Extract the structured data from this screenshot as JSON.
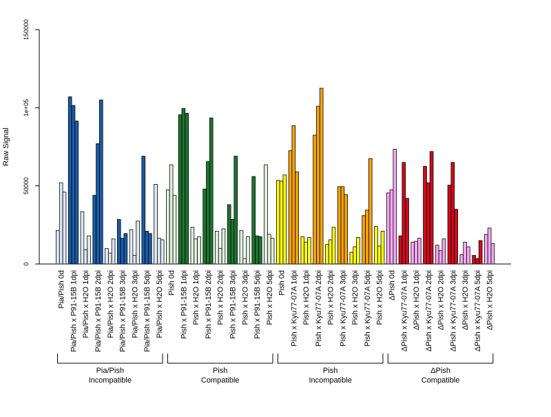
{
  "colors": {
    "group_colors": [
      {
        "light": "#dde8f5",
        "dark": "#1b5ca6"
      },
      {
        "light": "#e0f1dd",
        "dark": "#1e7430"
      },
      {
        "light": "#fbfb1a",
        "dark": "#f5a30c"
      },
      {
        "light": "#f5a8f0",
        "dark": "#cf0c1e"
      }
    ],
    "axis": "#000000",
    "bar_stroke": "#000000"
  },
  "chart_data": {
    "type": "bar",
    "ylabel": "Raw Signal",
    "xlabel": "",
    "ylim": [
      0,
      150000
    ],
    "yticks": [
      {
        "value": 0,
        "label": "0"
      },
      {
        "value": 50000,
        "label": "50000"
      },
      {
        "value": 100000,
        "label": "1e+05"
      },
      {
        "value": 150000,
        "label": "150000"
      }
    ],
    "grid": false,
    "replicates_per_condition": 3,
    "conditions": [
      {
        "label": "Pia/Pish 0d",
        "shade": "light",
        "values": [
          21500,
          52000,
          46000
        ]
      },
      {
        "label": "Pia/Pish x P91-15B 1dpi",
        "shade": "dark",
        "values": [
          107000,
          101500,
          91500
        ]
      },
      {
        "label": "Pia/Pish x H2O 1dpi",
        "shade": "light",
        "values": [
          33500,
          9000,
          18000
        ]
      },
      {
        "label": "Pia/Pish x P91-15B 2dpi",
        "shade": "dark",
        "values": [
          44000,
          77000,
          105000
        ]
      },
      {
        "label": "Pia/Pish x H2O 2dpi",
        "shade": "light",
        "values": [
          10000,
          7000,
          16000
        ]
      },
      {
        "label": "Pia/Pish x P91-15B 3dpi",
        "shade": "dark",
        "values": [
          28500,
          16500,
          19500
        ]
      },
      {
        "label": "Pia/Pish x H2O 3dpi",
        "shade": "light",
        "values": [
          22000,
          5500,
          27500
        ]
      },
      {
        "label": "Pia/Pish x P91-15B 5dpi",
        "shade": "dark",
        "values": [
          69000,
          21000,
          19500
        ]
      },
      {
        "label": "Pia/Pish x H2O 5dpi",
        "shade": "light",
        "values": [
          51000,
          16500,
          15500
        ]
      },
      {
        "label": "Pish 0d",
        "shade": "light",
        "values": [
          47500,
          63500,
          44000
        ]
      },
      {
        "label": "Pish x P91-15B 1dpi",
        "shade": "dark",
        "values": [
          95500,
          99500,
          96500
        ]
      },
      {
        "label": "Pish x H2O 1dpi",
        "shade": "light",
        "values": [
          23500,
          16000,
          17500
        ]
      },
      {
        "label": "Pish x P91-15B 2dpi",
        "shade": "dark",
        "values": [
          48000,
          65500,
          93500
        ]
      },
      {
        "label": "Pish x H2O 2dpi",
        "shade": "light",
        "values": [
          21000,
          10000,
          22500
        ]
      },
      {
        "label": "Pish x P91-15B 3dpi",
        "shade": "dark",
        "values": [
          38000,
          28500,
          69000
        ]
      },
      {
        "label": "Pish x H2O 3dpi",
        "shade": "light",
        "values": [
          21500,
          3500,
          17500
        ]
      },
      {
        "label": "Pish x P91-15B 5dpi",
        "shade": "dark",
        "values": [
          56000,
          18000,
          17500
        ]
      },
      {
        "label": "Pish x H2O 5dpi",
        "shade": "light",
        "values": [
          63500,
          19000,
          16500
        ]
      },
      {
        "label": "Pish 0d",
        "shade": "light",
        "values": [
          53500,
          53000,
          57000
        ]
      },
      {
        "label": "Pish x Kyu77-07A 1dpi",
        "shade": "dark",
        "values": [
          72500,
          88500,
          59000
        ]
      },
      {
        "label": "Pish x H2O 1dpi",
        "shade": "light",
        "values": [
          17500,
          14000,
          17000
        ]
      },
      {
        "label": "Pish x Kyu77-07A 2dpi",
        "shade": "dark",
        "values": [
          82500,
          101000,
          112500
        ]
      },
      {
        "label": "Pish x H2O 2dpi",
        "shade": "light",
        "values": [
          12500,
          15500,
          23500
        ]
      },
      {
        "label": "Pish x Kyu77-07A 3dpi",
        "shade": "dark",
        "values": [
          49500,
          49500,
          44500
        ]
      },
      {
        "label": "Pish x H2O 3dpi",
        "shade": "light",
        "values": [
          7500,
          11000,
          17000
        ]
      },
      {
        "label": "Pish x Kyu77-07A 5dpi",
        "shade": "dark",
        "values": [
          31000,
          34500,
          67500
        ]
      },
      {
        "label": "Pish x H2O 5dpi",
        "shade": "light",
        "values": [
          24000,
          11500,
          21000
        ]
      },
      {
        "label": "ΔPish 0d",
        "shade": "light",
        "values": [
          45500,
          47500,
          73500
        ]
      },
      {
        "label": "ΔPish x Kyu77-07A 1dpi",
        "shade": "dark",
        "values": [
          18000,
          65000,
          42000
        ]
      },
      {
        "label": "ΔPish x H2O 1dpi",
        "shade": "light",
        "values": [
          14000,
          14500,
          16500
        ]
      },
      {
        "label": "ΔPish x Kyu77-07A 2dpi",
        "shade": "dark",
        "values": [
          62500,
          52000,
          72000
        ]
      },
      {
        "label": "ΔPish x H2O 2dpi",
        "shade": "light",
        "values": [
          12000,
          8500,
          16000
        ]
      },
      {
        "label": "ΔPish x Kyu77-07A 3dpi",
        "shade": "dark",
        "values": [
          50500,
          65000,
          35000
        ]
      },
      {
        "label": "ΔPish x H2O 3dpi",
        "shade": "light",
        "values": [
          6000,
          14000,
          11000
        ]
      },
      {
        "label": "ΔPish x Kyu77-07A 5dpi",
        "shade": "dark",
        "values": [
          5500,
          3500,
          15000
        ]
      },
      {
        "label": "ΔPish x H2O 5dpi",
        "shade": "light",
        "values": [
          19000,
          23000,
          13000
        ]
      }
    ],
    "groups": [
      {
        "line1": "Pia/Pish",
        "line2": "Incompatible",
        "conditions": 9,
        "color_index": 0
      },
      {
        "line1": "Pish",
        "line2": "Compatible",
        "conditions": 9,
        "color_index": 1
      },
      {
        "line1": "Pish",
        "line2": "Incompatible",
        "conditions": 9,
        "color_index": 2
      },
      {
        "line1": "ΔPish",
        "line2": "Compatible",
        "conditions": 9,
        "color_index": 3
      }
    ]
  }
}
